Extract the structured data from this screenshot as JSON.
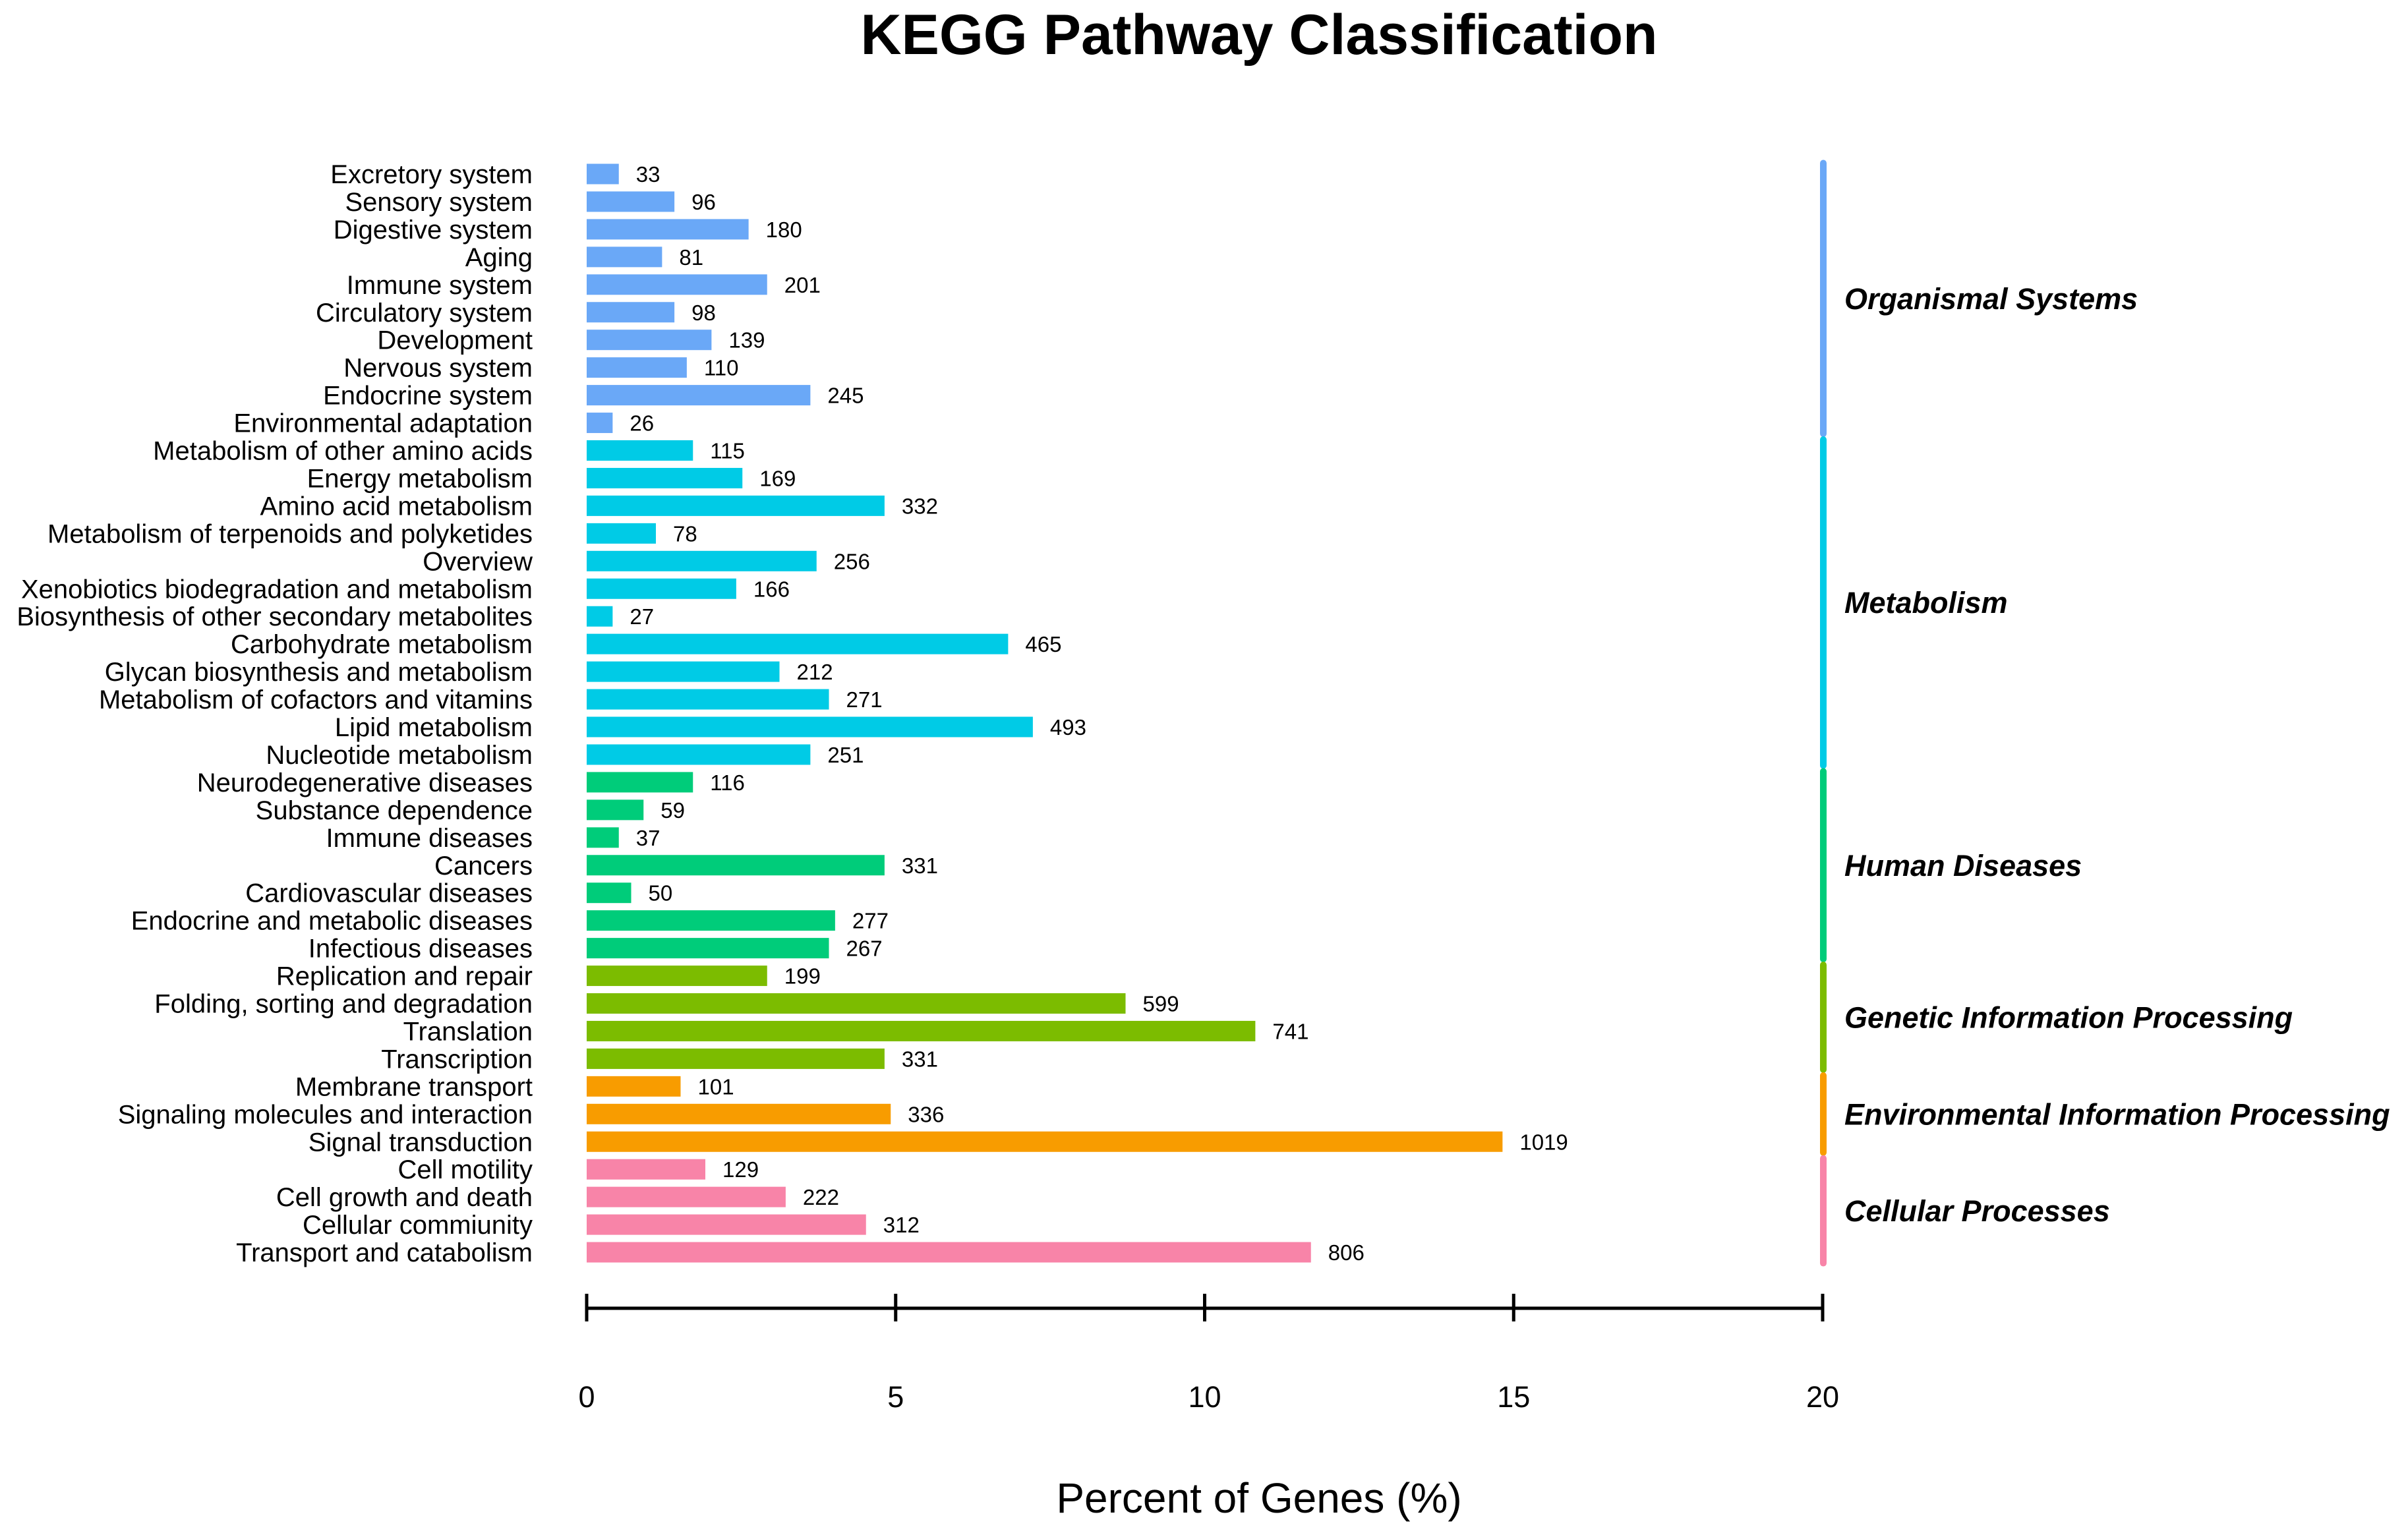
{
  "chart_data": {
    "type": "bar",
    "orientation": "horizontal",
    "title": "KEGG Pathway Classification",
    "xlabel": "Percent of Genes (%)",
    "ylabel": "",
    "xlim": [
      0,
      20
    ],
    "xticks": [
      0,
      5,
      10,
      15,
      20
    ],
    "value_unit": "percent of genes; bar labels show gene counts",
    "groups": [
      {
        "name": "Organismal Systems",
        "color": "#6aa8f7",
        "items": [
          {
            "label": "Excretory system",
            "count": 33,
            "percent": 0.52
          },
          {
            "label": "Sensory system",
            "count": 96,
            "percent": 1.42
          },
          {
            "label": "Digestive system",
            "count": 180,
            "percent": 2.62
          },
          {
            "label": "Aging",
            "count": 81,
            "percent": 1.22
          },
          {
            "label": "Immune system",
            "count": 201,
            "percent": 2.92
          },
          {
            "label": "Circulatory system",
            "count": 98,
            "percent": 1.42
          },
          {
            "label": "Development",
            "count": 139,
            "percent": 2.02
          },
          {
            "label": "Nervous system",
            "count": 110,
            "percent": 1.62
          },
          {
            "label": "Endocrine system",
            "count": 245,
            "percent": 3.62
          },
          {
            "label": "Environmental adaptation",
            "count": 26,
            "percent": 0.42
          }
        ]
      },
      {
        "name": "Metabolism",
        "color": "#00cbe6",
        "items": [
          {
            "label": "Metabolism of other amino acids",
            "count": 115,
            "percent": 1.72
          },
          {
            "label": "Energy metabolism",
            "count": 169,
            "percent": 2.52
          },
          {
            "label": "Amino acid metabolism",
            "count": 332,
            "percent": 4.82
          },
          {
            "label": "Metabolism of terpenoids and polyketides",
            "count": 78,
            "percent": 1.12
          },
          {
            "label": "Overview",
            "count": 256,
            "percent": 3.72
          },
          {
            "label": "Xenobiotics biodegradation and metabolism",
            "count": 166,
            "percent": 2.42
          },
          {
            "label": "Biosynthesis of other secondary metabolites",
            "count": 27,
            "percent": 0.42
          },
          {
            "label": "Carbohydrate metabolism",
            "count": 465,
            "percent": 6.82
          },
          {
            "label": "Glycan biosynthesis and metabolism",
            "count": 212,
            "percent": 3.12
          },
          {
            "label": "Metabolism of cofactors and vitamins",
            "count": 271,
            "percent": 3.92
          },
          {
            "label": "Lipid metabolism",
            "count": 493,
            "percent": 7.22
          },
          {
            "label": "Nucleotide metabolism",
            "count": 251,
            "percent": 3.62
          }
        ]
      },
      {
        "name": "Human Diseases",
        "color": "#00cc7a",
        "items": [
          {
            "label": "Neurodegenerative diseases",
            "count": 116,
            "percent": 1.72
          },
          {
            "label": "Substance dependence",
            "count": 59,
            "percent": 0.92
          },
          {
            "label": "Immune diseases",
            "count": 37,
            "percent": 0.52
          },
          {
            "label": "Cancers",
            "count": 331,
            "percent": 4.82
          },
          {
            "label": "Cardiovascular diseases",
            "count": 50,
            "percent": 0.72
          },
          {
            "label": "Endocrine and metabolic diseases",
            "count": 277,
            "percent": 4.02
          },
          {
            "label": "Infectious diseases",
            "count": 267,
            "percent": 3.92
          }
        ]
      },
      {
        "name": "Genetic Information Processing",
        "color": "#7cbc00",
        "items": [
          {
            "label": "Replication and repair",
            "count": 199,
            "percent": 2.92
          },
          {
            "label": "Folding, sorting and degradation",
            "count": 599,
            "percent": 8.72
          },
          {
            "label": "Translation",
            "count": 741,
            "percent": 10.82
          },
          {
            "label": "Transcription",
            "count": 331,
            "percent": 4.82
          }
        ]
      },
      {
        "name": "Environmental Information Processing",
        "color": "#f89c00",
        "items": [
          {
            "label": "Membrane transport",
            "count": 101,
            "percent": 1.52
          },
          {
            "label": "Signaling molecules and interaction",
            "count": 336,
            "percent": 4.92
          },
          {
            "label": "Signal transduction",
            "count": 1019,
            "percent": 14.82
          }
        ]
      },
      {
        "name": "Cellular Processes",
        "color": "#f884a8",
        "items": [
          {
            "label": "Cell motility",
            "count": 129,
            "percent": 1.92
          },
          {
            "label": "Cell growth and death",
            "count": 222,
            "percent": 3.22
          },
          {
            "label": "Cellular commiunity",
            "count": 312,
            "percent": 4.52
          },
          {
            "label": "Transport and catabolism",
            "count": 806,
            "percent": 11.72
          }
        ]
      }
    ]
  }
}
